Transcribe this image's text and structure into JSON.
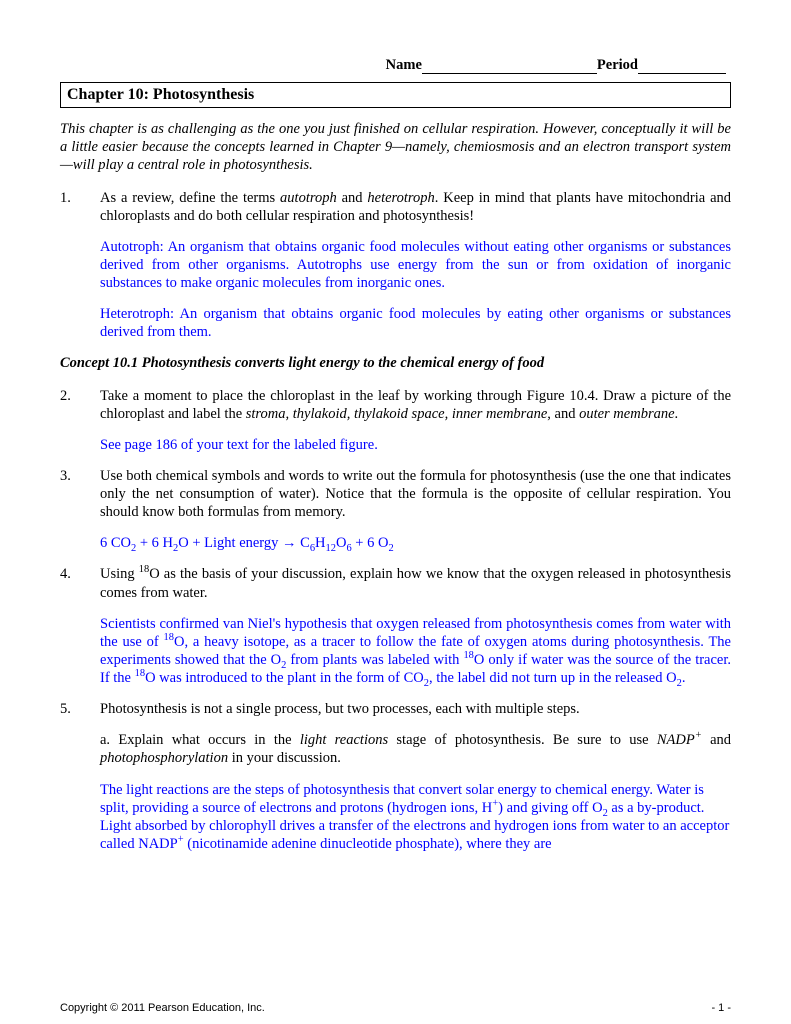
{
  "header": {
    "name_label": "Name",
    "period_label": "Period"
  },
  "chapter_title": "Chapter 10: Photosynthesis",
  "intro": "This chapter is as challenging as the one you just finished on cellular respiration. However, conceptually it will be a little easier because the concepts learned in Chapter 9—namely, chemiosmosis and an electron transport system—will play a central role in photosynthesis.",
  "questions": {
    "q1": {
      "num": "1.",
      "prompt_pre": "As a review, define the terms ",
      "term1": "autotroph",
      "prompt_mid": " and ",
      "term2": "heterotroph",
      "prompt_post": ". Keep in mind that plants have mitochondria and chloroplasts and do both cellular respiration and photosynthesis!",
      "ans1": "Autotroph: An organism that obtains organic food molecules without eating other organisms or substances derived from other organisms. Autotrophs use energy from the sun or from oxidation of inorganic substances to make organic molecules from inorganic ones.",
      "ans2": "Heterotroph: An organism that obtains organic food molecules by eating other organisms or substances derived from them."
    },
    "concept_10_1": "Concept 10.1 Photosynthesis converts light energy to the chemical energy of food",
    "q2": {
      "num": "2.",
      "prompt_a": "Take a moment to place the chloroplast in the leaf by working through Figure 10.4. Draw a picture of the chloroplast and label the ",
      "terms": "stroma, thylakoid, thylakoid space, inner membrane",
      "prompt_b": ", and ",
      "term_end": "outer membrane",
      "prompt_c": ".",
      "ans": "See page 186 of your text for the labeled figure."
    },
    "q3": {
      "num": "3.",
      "prompt": "Use both chemical symbols and words to write out the formula for photosynthesis (use the one that indicates only the net consumption of water). Notice that the formula is the opposite of cellular respiration. You should know both formulas from memory.",
      "formula_parts": {
        "p1": "6 CO",
        "s1": "2",
        "p2": " + 6 H",
        "s2": "2",
        "p3": "O + Light energy → C",
        "s3": "6",
        "p4": "H",
        "s4": "12",
        "p5": "O",
        "s5": "6",
        "p6": " + 6 O",
        "s6": "2"
      }
    },
    "q4": {
      "num": "4.",
      "prompt_a": "Using ",
      "sup1": "18",
      "prompt_b": "O as the basis of your discussion, explain how we know that the oxygen released in photosynthesis comes from water.",
      "ans_a": "Scientists confirmed van Niel's hypothesis that oxygen released from photosynthesis comes from water with the use of ",
      "ans_sup1": "18",
      "ans_b": "O, a heavy isotope, as a tracer to follow the fate of oxygen atoms during photosynthesis. The experiments showed that the O",
      "ans_sub1": "2",
      "ans_c": " from plants was labeled with ",
      "ans_sup2": "18",
      "ans_d": "O only if water was the source of the tracer. If the ",
      "ans_sup3": "18",
      "ans_e": "O was introduced to the plant in the form of CO",
      "ans_sub2": "2",
      "ans_f": ", the label did not turn up in the released O",
      "ans_sub3": "2",
      "ans_g": "."
    },
    "q5": {
      "num": "5.",
      "prompt": "Photosynthesis is not a single process, but two processes, each with multiple steps.",
      "sub_a_pre": "a. Explain what occurs in the ",
      "sub_a_em1": "light reactions",
      "sub_a_mid": " stage of photosynthesis. Be sure to use ",
      "sub_a_em2": "NADP",
      "sub_a_sup": "+",
      "sub_a_mid2": " and ",
      "sub_a_em3": "photophosphorylation",
      "sub_a_post": " in your discussion.",
      "ans_a": "The light reactions are the steps of photosynthesis that convert solar energy to chemical energy. Water is split, providing a source of electrons and protons (hydrogen ions, H",
      "ans_sup1": "+",
      "ans_b": ") and giving off O",
      "ans_sub1": "2",
      "ans_c": " as a by-product. Light absorbed by chlorophyll drives a transfer of the electrons and hydrogen ions from water to an acceptor called NADP",
      "ans_sup2": "+",
      "ans_d": " (nicotinamide adenine dinucleotide phosphate), where they are"
    }
  },
  "footer": {
    "copyright": "Copyright © 2011 Pearson Education, Inc.",
    "page": "- 1 -"
  }
}
